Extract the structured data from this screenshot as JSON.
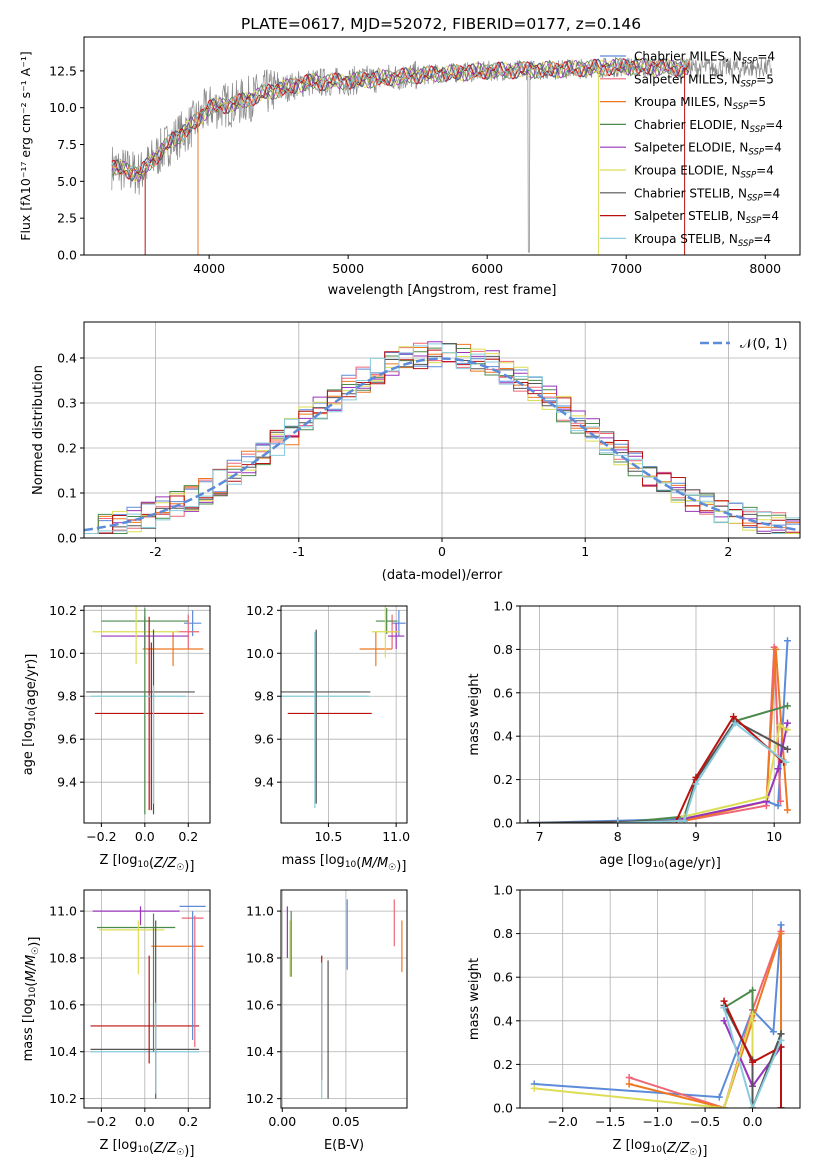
{
  "figure": {
    "title": "PLATE=0617, MJD=52072, FIBERID=0177, z=0.146"
  },
  "colors": {
    "Chabrier MILES": "#5b8bd9",
    "Salpeter MILES": "#ee6677",
    "Kroupa MILES": "#ee7722",
    "Chabrier ELODIE": "#4c8a4c",
    "Salpeter ELODIE": "#9933bb",
    "Kroupa ELODIE": "#dddd55",
    "Chabrier STELIB": "#555555",
    "Salpeter STELIB": "#bb1111",
    "Kroupa STELIB": "#88ccdd",
    "data": "#888888",
    "grid": "#b0b0b0",
    "normal": "#5b8bd9"
  },
  "chart_data": [
    {
      "id": "spectrum",
      "type": "line",
      "xlabel": "wavelength [Angstrom, rest frame]",
      "ylabel": "Flux [fλ10⁻¹⁷ erg cm⁻² s⁻¹ A⁻¹]",
      "xlim": [
        3100,
        8250
      ],
      "ylim": [
        0,
        14.8
      ],
      "xticks": [
        4000,
        5000,
        6000,
        7000,
        8000
      ],
      "yticks": [
        0.0,
        2.5,
        5.0,
        7.5,
        10.0,
        12.5
      ],
      "grid": false,
      "legend_position": "right",
      "continuum": [
        [
          3300,
          6.0
        ],
        [
          3500,
          5.5
        ],
        [
          3700,
          7.5
        ],
        [
          3900,
          9.0
        ],
        [
          4000,
          10.0
        ],
        [
          4200,
          10.3
        ],
        [
          4400,
          11.0
        ],
        [
          4700,
          11.7
        ],
        [
          5000,
          11.8
        ],
        [
          5500,
          12.2
        ],
        [
          6000,
          12.5
        ],
        [
          6500,
          12.6
        ],
        [
          7000,
          12.8
        ],
        [
          7400,
          12.7
        ]
      ],
      "data_range": [
        3300,
        8050
      ],
      "model_range": [
        3300,
        7450
      ],
      "series": [
        {
          "name": "Chabrier MILES, N$_{SSP}$=4"
        },
        {
          "name": "Salpeter MILES, N$_{SSP}$=5"
        },
        {
          "name": "Kroupa MILES, N$_{SSP}$=5"
        },
        {
          "name": "Chabrier ELODIE, N$_{SSP}$=4"
        },
        {
          "name": "Salpeter ELODIE, N$_{SSP}$=4"
        },
        {
          "name": "Kroupa ELODIE, N$_{SSP}$=4"
        },
        {
          "name": "Chabrier STELIB, N$_{SSP}$=4"
        },
        {
          "name": "Salpeter STELIB, N$_{SSP}$=4"
        },
        {
          "name": "Kroupa STELIB, N$_{SSP}$=4"
        }
      ],
      "legend": [
        "Chabrier MILES, N",
        "Salpeter MILES, N",
        "Kroupa MILES, N",
        "Chabrier ELODIE, N",
        "Salpeter ELODIE, N",
        "Kroupa ELODIE, N",
        "Chabrier STELIB, N",
        "Salpeter STELIB, N",
        "Kroupa STELIB, N"
      ],
      "legend_sub": "SSP",
      "legend_values": [
        "=4",
        "=5",
        "=5",
        "=4",
        "=4",
        "=4",
        "=4",
        "=4",
        "=4"
      ]
    },
    {
      "id": "residual_histogram",
      "type": "bar",
      "xlabel": "(data-model)/error",
      "ylabel": "Normed distribution",
      "xlim": [
        -2.5,
        2.5
      ],
      "ylim": [
        0,
        0.48
      ],
      "xticks": [
        -2,
        -1,
        0,
        1,
        2
      ],
      "yticks": [
        0.0,
        0.1,
        0.2,
        0.3,
        0.4
      ],
      "grid": true,
      "bin_width": 0.1,
      "normal_curve": {
        "label": "𝒩(0, 1)",
        "mu": 0,
        "sigma": 1,
        "dash": true
      },
      "legend_position": "top-right"
    },
    {
      "id": "age_vs_Z",
      "type": "scatter",
      "xlabel": "Z [log10(Z/Z☉)]",
      "ylabel": "age [log10(age/yr)]",
      "xlim": [
        -0.28,
        0.3
      ],
      "ylim": [
        9.21,
        10.22
      ],
      "xticks": [
        -0.2,
        0.0,
        0.2
      ],
      "yticks": [
        9.4,
        9.6,
        9.8,
        10.0,
        10.2
      ],
      "grid": true,
      "points": [
        {
          "model": "Chabrier MILES",
          "x": 0.22,
          "xerr": 0.04,
          "y": 10.14,
          "yerr": 0.06
        },
        {
          "model": "Salpeter MILES",
          "x": 0.2,
          "xerr": 0.05,
          "y": 10.1,
          "yerr": 0.08
        },
        {
          "model": "Kroupa MILES",
          "x": 0.13,
          "xerr": 0.14,
          "y": 10.02,
          "yerr": 0.08
        },
        {
          "model": "Chabrier ELODIE",
          "x": 0.0,
          "xerr": 0.2,
          "y": 10.15,
          "yerr": 0.06
        },
        {
          "model": "Salpeter ELODIE",
          "x": 0.0,
          "xerr": 0.2,
          "y": 10.08,
          "yerr": 0.06
        },
        {
          "model": "Kroupa ELODIE",
          "x": -0.04,
          "xerr": 0.2,
          "y": 10.1,
          "yerr": 0.15
        },
        {
          "model": "Chabrier STELIB",
          "x": -0.02,
          "xerr": 0.25,
          "y": 9.82,
          "yerr": 0.0
        },
        {
          "model": "Salpeter STELIB",
          "x": 0.02,
          "xerr": 0.25,
          "y": 9.72,
          "yerr": 0.45
        },
        {
          "model": "Kroupa STELIB",
          "x": -0.03,
          "xerr": 0.22,
          "y": 9.8,
          "yerr": 0.0
        }
      ],
      "vlines": [
        {
          "model": "Chabrier ELODIE",
          "x": 0.0,
          "y0": 9.25,
          "y1": 10.17
        },
        {
          "model": "Chabrier STELIB",
          "x": 0.04,
          "y0": 9.25,
          "y1": 10.11
        },
        {
          "model": "Salpeter STELIB",
          "x": 0.03,
          "y0": 9.27,
          "y1": 10.05
        },
        {
          "model": "Kroupa STELIB",
          "x": 0.04,
          "y0": 9.3,
          "y1": 9.85
        }
      ]
    },
    {
      "id": "age_vs_mass",
      "type": "scatter",
      "xlabel": "mass [log10(M/M☉)]",
      "ylabel": "",
      "xlim": [
        10.15,
        11.08
      ],
      "ylim": [
        9.21,
        10.22
      ],
      "xticks": [
        10.5,
        11.0
      ],
      "yticks": [
        9.4,
        9.6,
        9.8,
        10.0,
        10.2
      ],
      "grid": true,
      "points": [
        {
          "model": "Chabrier MILES",
          "x": 11.02,
          "xerr": 0.05,
          "y": 10.14,
          "yerr": 0.06
        },
        {
          "model": "Salpeter MILES",
          "x": 10.97,
          "xerr": 0.05,
          "y": 10.1,
          "yerr": 0.08
        },
        {
          "model": "Kroupa MILES",
          "x": 10.85,
          "xerr": 0.12,
          "y": 10.02,
          "yerr": 0.08
        },
        {
          "model": "Chabrier ELODIE",
          "x": 10.93,
          "xerr": 0.08,
          "y": 10.15,
          "yerr": 0.06
        },
        {
          "model": "Salpeter ELODIE",
          "x": 11.0,
          "xerr": 0.06,
          "y": 10.08,
          "yerr": 0.06
        },
        {
          "model": "Kroupa ELODIE",
          "x": 10.92,
          "xerr": 0.1,
          "y": 10.1,
          "yerr": 0.12
        },
        {
          "model": "Chabrier STELIB",
          "x": 10.41,
          "xerr": 0.4,
          "y": 9.82,
          "yerr": 0.0
        },
        {
          "model": "Salpeter STELIB",
          "x": 10.51,
          "xerr": 0.31,
          "y": 9.72,
          "yerr": 0.0
        },
        {
          "model": "Kroupa STELIB",
          "x": 10.4,
          "xerr": 0.4,
          "y": 9.8,
          "yerr": 0.0
        }
      ],
      "vlines": [
        {
          "model": "Chabrier STELIB",
          "x": 10.41,
          "y0": 9.3,
          "y1": 10.11
        },
        {
          "model": "Kroupa STELIB",
          "x": 10.4,
          "y0": 9.28,
          "y1": 10.1
        }
      ]
    },
    {
      "id": "mass_weight_vs_age",
      "type": "line",
      "xlabel": "age [log10(age/yr)]",
      "ylabel": "mass weight",
      "xlim": [
        6.75,
        10.33
      ],
      "ylim": [
        0,
        1
      ],
      "xticks": [
        7,
        8,
        9,
        10
      ],
      "yticks": [
        0.0,
        0.2,
        0.4,
        0.6,
        0.8,
        1.0
      ],
      "grid": true,
      "series": [
        {
          "model": "Chabrier MILES",
          "x": [
            6.85,
            8.0,
            8.85,
            9.9,
            10.05,
            10.17
          ],
          "y": [
            0.0,
            0.01,
            0.02,
            0.1,
            0.08,
            0.84
          ]
        },
        {
          "model": "Salpeter MILES",
          "x": [
            8.0,
            8.85,
            9.9,
            10.0,
            10.08
          ],
          "y": [
            0.0,
            0.01,
            0.08,
            0.81,
            0.1
          ]
        },
        {
          "model": "Kroupa MILES",
          "x": [
            8.0,
            8.85,
            9.9,
            10.02,
            10.17
          ],
          "y": [
            0.0,
            0.01,
            0.1,
            0.8,
            0.06
          ]
        },
        {
          "model": "Chabrier ELODIE",
          "x": [
            8.0,
            8.85,
            9.0,
            9.5,
            10.17
          ],
          "y": [
            0.0,
            0.03,
            0.2,
            0.47,
            0.54
          ]
        },
        {
          "model": "Salpeter ELODIE",
          "x": [
            8.85,
            9.9,
            10.05,
            10.17
          ],
          "y": [
            0.02,
            0.1,
            0.25,
            0.46
          ]
        },
        {
          "model": "Kroupa ELODIE",
          "x": [
            8.85,
            9.9,
            10.07,
            10.17
          ],
          "y": [
            0.03,
            0.12,
            0.45,
            0.43
          ]
        },
        {
          "model": "Chabrier STELIB",
          "x": [
            6.85,
            8.85,
            9.0,
            9.5,
            10.17
          ],
          "y": [
            0.0,
            0.01,
            0.2,
            0.47,
            0.34
          ]
        },
        {
          "model": "Salpeter STELIB",
          "x": [
            8.0,
            8.75,
            9.0,
            9.48,
            10.12
          ],
          "y": [
            0.0,
            0.01,
            0.21,
            0.49,
            0.28
          ]
        },
        {
          "model": "Kroupa STELIB",
          "x": [
            8.0,
            8.85,
            9.0,
            9.5,
            10.15
          ],
          "y": [
            0.0,
            0.01,
            0.18,
            0.46,
            0.28
          ]
        }
      ]
    },
    {
      "id": "mass_vs_Z",
      "type": "scatter",
      "xlabel": "Z [log10(Z/Z☉)]",
      "ylabel": "mass [log10(M/M☉)]",
      "xlim": [
        -0.28,
        0.3
      ],
      "ylim": [
        10.16,
        11.09
      ],
      "xticks": [
        -0.2,
        0.0,
        0.2
      ],
      "yticks": [
        10.2,
        10.4,
        10.6,
        10.8,
        11.0
      ],
      "grid": true,
      "points": [
        {
          "model": "Chabrier MILES",
          "x": 0.22,
          "xerr": 0.06,
          "y": 11.02,
          "yerr": 0.0
        },
        {
          "model": "Salpeter MILES",
          "x": 0.22,
          "xerr": 0.05,
          "y": 10.97,
          "yerr": 0.0
        },
        {
          "model": "Kroupa MILES",
          "x": 0.15,
          "xerr": 0.12,
          "y": 10.85,
          "yerr": 0.0
        },
        {
          "model": "Chabrier ELODIE",
          "x": -0.04,
          "xerr": 0.18,
          "y": 10.93,
          "yerr": 0.0
        },
        {
          "model": "Salpeter ELODIE",
          "x": -0.04,
          "xerr": 0.2,
          "y": 11.0,
          "yerr": 0.0
        },
        {
          "model": "Kroupa ELODIE",
          "x": -0.06,
          "xerr": 0.15,
          "y": 10.92,
          "yerr": 0.0
        },
        {
          "model": "Chabrier STELIB",
          "x": 0.0,
          "xerr": 0.25,
          "y": 10.41,
          "yerr": 0.0
        },
        {
          "model": "Salpeter STELIB",
          "x": 0.0,
          "xerr": 0.25,
          "y": 10.51,
          "yerr": 0.0
        },
        {
          "model": "Kroupa STELIB",
          "x": 0.0,
          "xerr": 0.25,
          "y": 10.4,
          "yerr": 0.0
        }
      ],
      "vlines": [
        {
          "model": "Chabrier MILES",
          "x": 0.22,
          "y0": 10.45,
          "y1": 11.0
        },
        {
          "model": "Salpeter MILES",
          "x": 0.23,
          "y0": 10.42,
          "y1": 10.98
        },
        {
          "model": "Kroupa ELODIE",
          "x": -0.03,
          "y0": 10.73,
          "y1": 10.96
        },
        {
          "model": "Salpeter ELODIE",
          "x": -0.02,
          "y0": 10.94,
          "y1": 11.02
        },
        {
          "model": "Chabrier ELODIE",
          "x": 0.04,
          "y0": 10.4,
          "y1": 10.99
        },
        {
          "model": "Chabrier STELIB",
          "x": 0.05,
          "y0": 10.2,
          "y1": 10.96
        },
        {
          "model": "Salpeter STELIB",
          "x": 0.02,
          "y0": 10.35,
          "y1": 10.81
        },
        {
          "model": "Kroupa STELIB",
          "x": 0.05,
          "y0": 10.22,
          "y1": 10.61
        }
      ]
    },
    {
      "id": "mass_vs_EBV",
      "type": "scatter",
      "xlabel": "E(B-V)",
      "ylabel": "",
      "xlim": [
        -0.001,
        0.098
      ],
      "ylim": [
        10.16,
        11.09
      ],
      "xticks": [
        0.0,
        0.05
      ],
      "xtick_labels": [
        "0.00",
        "0.05"
      ],
      "yticks": [
        10.2,
        10.4,
        10.6,
        10.8,
        11.0
      ],
      "grid": true,
      "vlines": [
        {
          "model": "Chabrier MILES",
          "x": 0.051,
          "y0": 10.75,
          "y1": 11.05
        },
        {
          "model": "Salpeter MILES",
          "x": 0.088,
          "y0": 10.85,
          "y1": 11.05
        },
        {
          "model": "Kroupa MILES",
          "x": 0.094,
          "y0": 10.74,
          "y1": 10.96
        },
        {
          "model": "Chabrier ELODIE",
          "x": 0.007,
          "y0": 10.72,
          "y1": 11.0
        },
        {
          "model": "Salpeter ELODIE",
          "x": 0.004,
          "y0": 10.8,
          "y1": 11.02
        },
        {
          "model": "Kroupa ELODIE",
          "x": 0.006,
          "y0": 10.72,
          "y1": 10.96
        },
        {
          "model": "Chabrier STELIB",
          "x": 0.036,
          "y0": 10.2,
          "y1": 10.79
        },
        {
          "model": "Salpeter STELIB",
          "x": 0.031,
          "y0": 10.28,
          "y1": 10.81
        },
        {
          "model": "Kroupa STELIB",
          "x": 0.031,
          "y0": 10.2,
          "y1": 10.78
        }
      ]
    },
    {
      "id": "mass_weight_vs_Z",
      "type": "line",
      "xlabel": "Z [log10(Z/Z☉)]",
      "ylabel": "mass weight",
      "xlim": [
        -2.45,
        0.5
      ],
      "ylim": [
        0,
        1
      ],
      "xticks": [
        -2.0,
        -1.5,
        -1.0,
        -0.5,
        0.0
      ],
      "yticks": [
        0.0,
        0.2,
        0.4,
        0.6,
        0.8,
        1.0
      ],
      "grid": true,
      "series": [
        {
          "model": "Chabrier MILES",
          "x": [
            -2.3,
            -0.35,
            0.0,
            0.22,
            0.3,
            0.3
          ],
          "y": [
            0.11,
            0.05,
            0.45,
            0.35,
            0.84,
            0.0
          ]
        },
        {
          "model": "Salpeter MILES",
          "x": [
            -1.3,
            -0.3,
            0.0,
            0.3,
            0.3
          ],
          "y": [
            0.14,
            0.0,
            0.45,
            0.81,
            0.0
          ]
        },
        {
          "model": "Kroupa MILES",
          "x": [
            -1.3,
            -0.3,
            0.0,
            0.3,
            0.3
          ],
          "y": [
            0.11,
            0.0,
            0.4,
            0.8,
            0.0
          ]
        },
        {
          "model": "Chabrier ELODIE",
          "x": [
            -0.3,
            0.0,
            0.0,
            0.3
          ],
          "y": [
            0.46,
            0.54,
            0.0,
            0.34
          ]
        },
        {
          "model": "Salpeter ELODIE",
          "x": [
            -0.3,
            0.0,
            0.3
          ],
          "y": [
            0.4,
            0.1,
            0.28
          ]
        },
        {
          "model": "Kroupa ELODIE",
          "x": [
            -2.3,
            -0.3,
            0.0,
            0.0
          ],
          "y": [
            0.09,
            0.0,
            0.43,
            0.0
          ]
        },
        {
          "model": "Chabrier STELIB",
          "x": [
            -0.3,
            0.0,
            0.0,
            0.3
          ],
          "y": [
            0.47,
            0.22,
            0.0,
            0.34
          ]
        },
        {
          "model": "Salpeter STELIB",
          "x": [
            -0.3,
            0.0,
            0.3,
            0.3
          ],
          "y": [
            0.49,
            0.21,
            0.28,
            0.0
          ]
        },
        {
          "model": "Kroupa STELIB",
          "x": [
            -0.3,
            0.0,
            0.3
          ],
          "y": [
            0.46,
            0.0,
            0.31
          ]
        }
      ]
    }
  ]
}
